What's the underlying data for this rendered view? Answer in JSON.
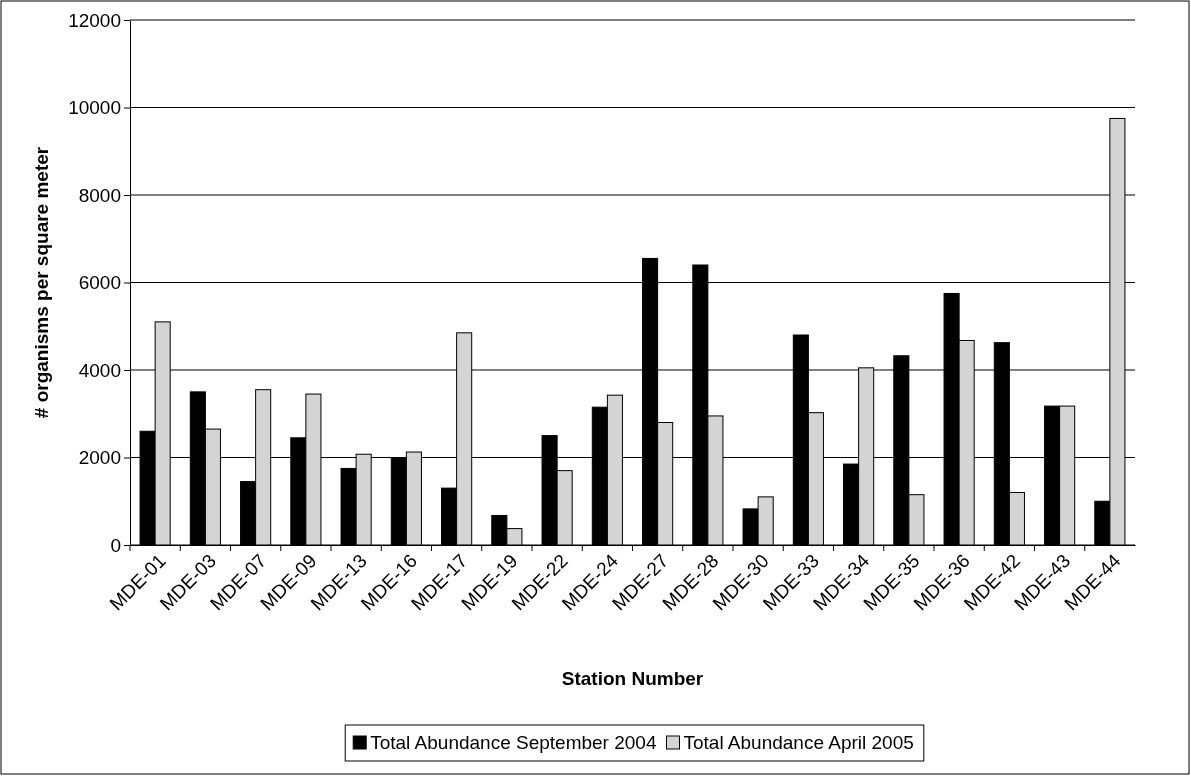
{
  "chart_data": {
    "type": "bar",
    "xlabel": "Station Number",
    "ylabel": "# organisms per square meter",
    "categories": [
      "MDE-01",
      "MDE-03",
      "MDE-07",
      "MDE-09",
      "MDE-13",
      "MDE-16",
      "MDE-17",
      "MDE-19",
      "MDE-22",
      "MDE-24",
      "MDE-27",
      "MDE-28",
      "MDE-30",
      "MDE-33",
      "MDE-34",
      "MDE-35",
      "MDE-36",
      "MDE-42",
      "MDE-43",
      "MDE-44"
    ],
    "series": [
      {
        "name": "Total Abundance September 2004",
        "color": "#000000",
        "values": [
          2600,
          3500,
          1450,
          2450,
          1750,
          1975,
          1300,
          675,
          2500,
          3150,
          6550,
          6400,
          825,
          4800,
          1850,
          4325,
          5750,
          4625,
          3175,
          1000
        ]
      },
      {
        "name": "Total Abundance April 2005",
        "color": "#d4d4d4",
        "values": [
          5100,
          2650,
          3550,
          3450,
          2075,
          2125,
          4850,
          375,
          1700,
          3425,
          2800,
          2950,
          1100,
          3025,
          4050,
          1150,
          4675,
          1200,
          3175,
          9750
        ]
      }
    ],
    "ylim": [
      0,
      12000
    ],
    "yticks": [
      0,
      2000,
      4000,
      6000,
      8000,
      10000,
      12000
    ],
    "grid": "y",
    "legend": "bottom"
  }
}
